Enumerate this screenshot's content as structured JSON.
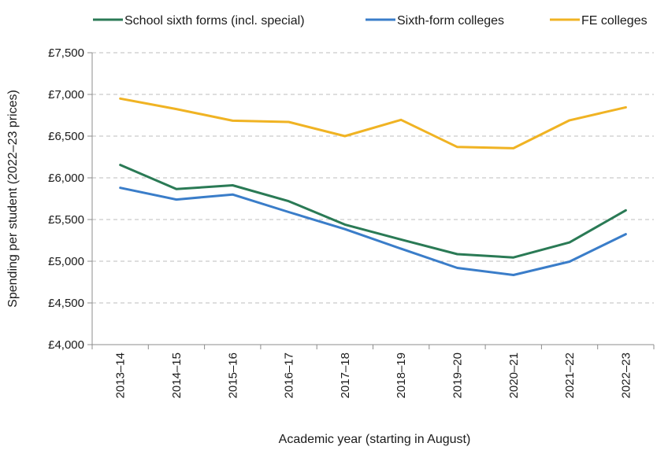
{
  "chart_data": {
    "type": "line",
    "title": "",
    "xlabel": "Academic year (starting in August)",
    "ylabel": "Spending per student (2022–23 prices)",
    "categories": [
      "2013–14",
      "2014–15",
      "2015–16",
      "2016–17",
      "2017–18",
      "2018–19",
      "2019–20",
      "2020–21",
      "2021–22",
      "2022–23"
    ],
    "ylim": [
      4000,
      7500
    ],
    "yticks": [
      4000,
      4500,
      5000,
      5500,
      6000,
      6500,
      7000,
      7500
    ],
    "ytick_labels": [
      "£4,000",
      "£4,500",
      "£5,000",
      "£5,500",
      "£6,000",
      "£6,500",
      "£7,000",
      "£7,500"
    ],
    "grid": true,
    "legend_position": "top",
    "series": [
      {
        "name": "School sixth forms (incl. special)",
        "color": "#2a7a55",
        "values": [
          6155,
          5865,
          5910,
          5720,
          5440,
          5260,
          5085,
          5045,
          5225,
          5610
        ]
      },
      {
        "name": "Sixth-form colleges",
        "color": "#3a7dc9",
        "values": [
          5880,
          5740,
          5800,
          5590,
          5385,
          5150,
          4920,
          4835,
          4995,
          5325
        ]
      },
      {
        "name": "FE colleges",
        "color": "#f0b323",
        "values": [
          6950,
          6825,
          6685,
          6670,
          6500,
          6695,
          6370,
          6355,
          6690,
          6845
        ]
      }
    ]
  }
}
